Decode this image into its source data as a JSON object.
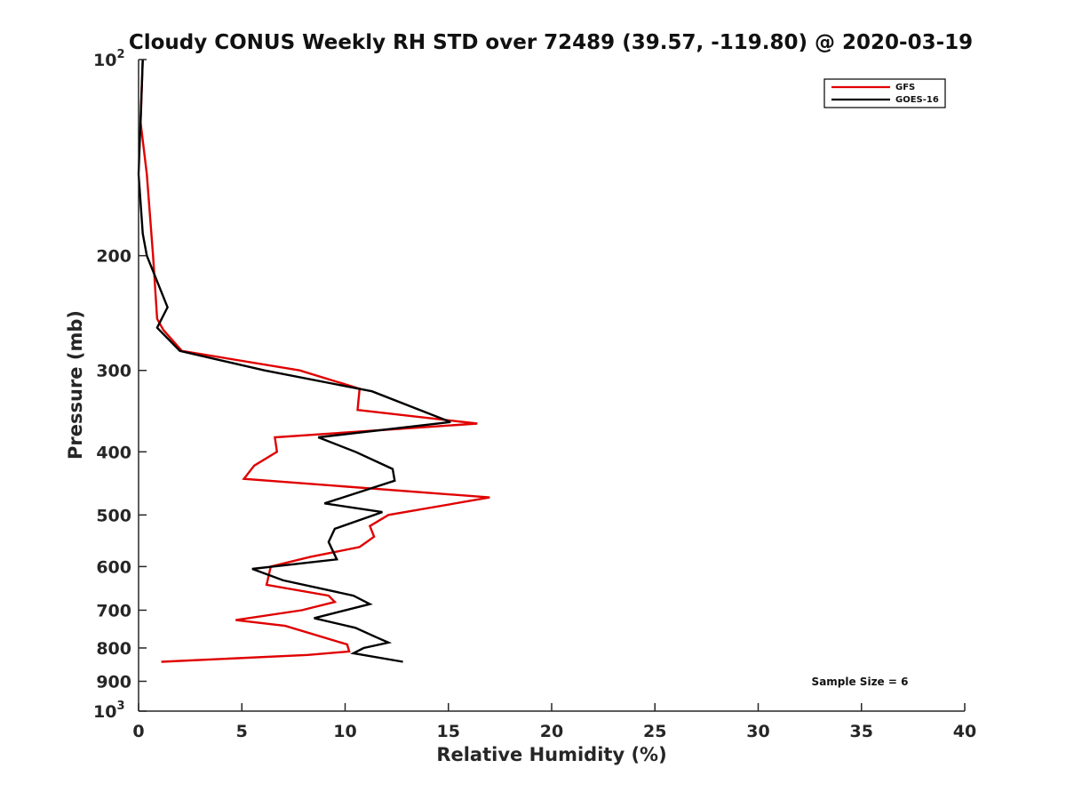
{
  "chart_data": {
    "type": "line",
    "title": "Cloudy CONUS Weekly RH STD over 72489 (39.57, -119.80) @ 2020-03-19",
    "xlabel": "Relative Humidity (%)",
    "ylabel": "Pressure (mb)",
    "xlim": [
      0,
      40
    ],
    "ylim": [
      100,
      1000
    ],
    "y_scale": "log",
    "y_reversed": true,
    "grid": false,
    "x_ticks": [
      0,
      5,
      10,
      15,
      20,
      25,
      30,
      35,
      40
    ],
    "x_tick_labels": [
      "0",
      "5",
      "10",
      "15",
      "20",
      "25",
      "30",
      "35",
      "40"
    ],
    "y_ticks": [
      100,
      200,
      300,
      400,
      500,
      600,
      700,
      800,
      900,
      1000
    ],
    "y_tick_labels": [
      {
        "base": "10",
        "exp": "2"
      },
      {
        "base": "200",
        "exp": ""
      },
      {
        "base": "300",
        "exp": ""
      },
      {
        "base": "400",
        "exp": ""
      },
      {
        "base": "500",
        "exp": ""
      },
      {
        "base": "600",
        "exp": ""
      },
      {
        "base": "700",
        "exp": ""
      },
      {
        "base": "800",
        "exp": ""
      },
      {
        "base": "900",
        "exp": ""
      },
      {
        "base": "10",
        "exp": "3"
      }
    ],
    "legend_position": "top-right",
    "annotation": "Sample Size = 6",
    "series": [
      {
        "name": "GFS",
        "color": "#e00000",
        "points": [
          [
            0.2,
            100
          ],
          [
            0.1,
            125
          ],
          [
            0.4,
            150
          ],
          [
            0.7,
            200
          ],
          [
            0.9,
            250
          ],
          [
            1.2,
            260
          ],
          [
            2.1,
            280
          ],
          [
            7.8,
            300
          ],
          [
            10.7,
            320
          ],
          [
            10.6,
            345
          ],
          [
            16.4,
            362
          ],
          [
            6.6,
            380
          ],
          [
            6.7,
            400
          ],
          [
            5.6,
            420
          ],
          [
            5.1,
            440
          ],
          [
            17.0,
            470
          ],
          [
            12.1,
            500
          ],
          [
            11.2,
            520
          ],
          [
            11.4,
            540
          ],
          [
            10.7,
            560
          ],
          [
            8.3,
            580
          ],
          [
            6.4,
            600
          ],
          [
            6.2,
            640
          ],
          [
            9.2,
            665
          ],
          [
            9.5,
            680
          ],
          [
            7.9,
            700
          ],
          [
            4.7,
            725
          ],
          [
            7.1,
            740
          ],
          [
            10.1,
            790
          ],
          [
            10.2,
            810
          ],
          [
            8.2,
            820
          ],
          [
            1.1,
            840
          ]
        ]
      },
      {
        "name": "GOES-16",
        "color": "#000000",
        "points": [
          [
            0.2,
            100
          ],
          [
            0.0,
            150
          ],
          [
            0.2,
            185
          ],
          [
            0.4,
            200
          ],
          [
            1.4,
            240
          ],
          [
            0.9,
            258
          ],
          [
            2.0,
            280
          ],
          [
            6.1,
            300
          ],
          [
            11.3,
            323
          ],
          [
            15.1,
            360
          ],
          [
            8.7,
            380
          ],
          [
            10.5,
            400
          ],
          [
            12.3,
            425
          ],
          [
            12.4,
            443
          ],
          [
            9.0,
            480
          ],
          [
            11.8,
            495
          ],
          [
            9.5,
            525
          ],
          [
            9.2,
            550
          ],
          [
            9.6,
            585
          ],
          [
            5.5,
            605
          ],
          [
            7.0,
            630
          ],
          [
            10.4,
            665
          ],
          [
            11.2,
            685
          ],
          [
            8.5,
            720
          ],
          [
            10.5,
            745
          ],
          [
            11.5,
            770
          ],
          [
            12.1,
            785
          ],
          [
            10.9,
            800
          ],
          [
            10.4,
            815
          ],
          [
            12.8,
            840
          ]
        ]
      }
    ]
  }
}
